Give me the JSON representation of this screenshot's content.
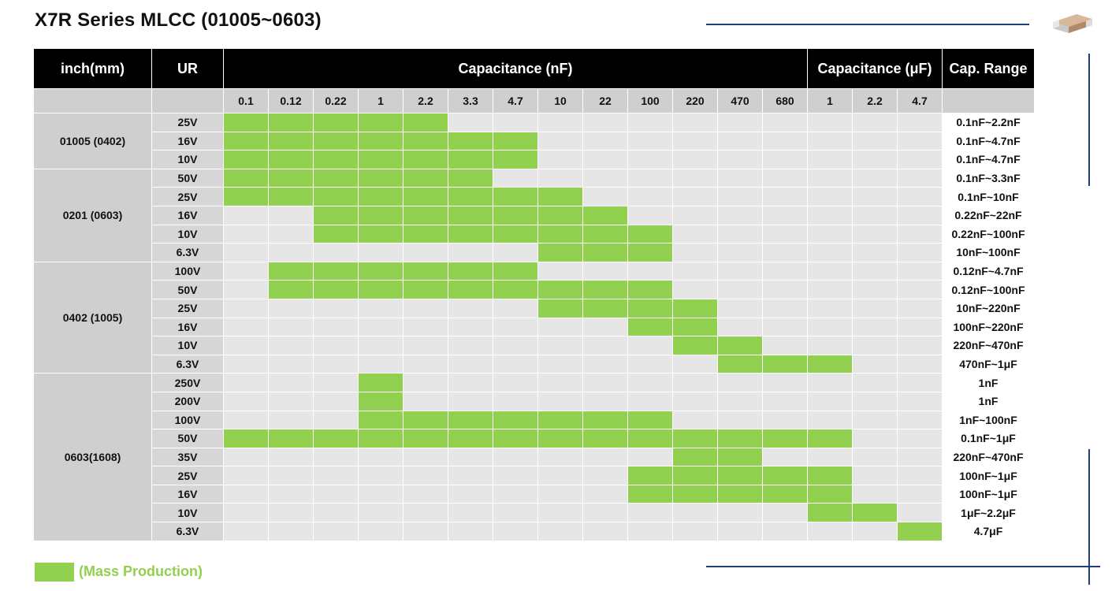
{
  "title": "X7R Series MLCC  (01005~0603)",
  "colors": {
    "mass_production": "#92d050",
    "header_bg": "#000000",
    "accent_line": "#1f3f7a"
  },
  "header": {
    "size_label": "inch(mm)",
    "ur_label": "UR",
    "cap_nf_label": "Capacitance (nF)",
    "cap_uf_label": "Capacitance (μF)",
    "range_label": "Cap. Range"
  },
  "cap_nf_values": [
    "0.1",
    "0.12",
    "0.22",
    "1",
    "2.2",
    "3.3",
    "4.7",
    "10",
    "22",
    "100",
    "220",
    "470",
    "680"
  ],
  "cap_uf_values": [
    "1",
    "2.2",
    "4.7"
  ],
  "groups": [
    {
      "size": "01005 (0402)",
      "rows": [
        {
          "ur": "25V",
          "range": "0.1nF~2.2nF",
          "on": [
            0,
            4
          ]
        },
        {
          "ur": "16V",
          "range": "0.1nF~4.7nF",
          "on": [
            0,
            6
          ]
        },
        {
          "ur": "10V",
          "range": "0.1nF~4.7nF",
          "on": [
            0,
            6
          ]
        }
      ]
    },
    {
      "size": "0201 (0603)",
      "rows": [
        {
          "ur": "50V",
          "range": "0.1nF~3.3nF",
          "on": [
            0,
            5
          ]
        },
        {
          "ur": "25V",
          "range": "0.1nF~10nF",
          "on": [
            0,
            7
          ]
        },
        {
          "ur": "16V",
          "range": "0.22nF~22nF",
          "on": [
            2,
            8
          ]
        },
        {
          "ur": "10V",
          "range": "0.22nF~100nF",
          "on": [
            2,
            9
          ]
        },
        {
          "ur": "6.3V",
          "range": "10nF~100nF",
          "on": [
            7,
            9
          ]
        }
      ]
    },
    {
      "size": "0402 (1005)",
      "rows": [
        {
          "ur": "100V",
          "range": "0.12nF~4.7nF",
          "on": [
            1,
            6
          ]
        },
        {
          "ur": "50V",
          "range": "0.12nF~100nF",
          "on": [
            1,
            9
          ]
        },
        {
          "ur": "25V",
          "range": "10nF~220nF",
          "on": [
            7,
            10
          ]
        },
        {
          "ur": "16V",
          "range": "100nF~220nF",
          "on": [
            9,
            10
          ]
        },
        {
          "ur": "10V",
          "range": "220nF~470nF",
          "on": [
            10,
            11
          ]
        },
        {
          "ur": "6.3V",
          "range": "470nF~1μF",
          "on": [
            11,
            13
          ]
        }
      ]
    },
    {
      "size": "0603(1608)",
      "rows": [
        {
          "ur": "250V",
          "range": "1nF",
          "on": [
            3,
            3
          ]
        },
        {
          "ur": "200V",
          "range": "1nF",
          "on": [
            3,
            3
          ]
        },
        {
          "ur": "100V",
          "range": "1nF~100nF",
          "on": [
            3,
            9
          ]
        },
        {
          "ur": "50V",
          "range": "0.1nF~1μF",
          "on": [
            0,
            13
          ]
        },
        {
          "ur": "35V",
          "range": "220nF~470nF",
          "on": [
            10,
            11
          ]
        },
        {
          "ur": "25V",
          "range": "100nF~1μF",
          "on": [
            9,
            13
          ]
        },
        {
          "ur": "16V",
          "range": "100nF~1μF",
          "on": [
            9,
            13
          ]
        },
        {
          "ur": "10V",
          "range": "1μF~2.2μF",
          "on": [
            13,
            14
          ]
        },
        {
          "ur": "6.3V",
          "range": "4.7μF",
          "on": [
            15,
            15
          ]
        }
      ]
    }
  ],
  "legend": {
    "label": "(Mass Production)"
  }
}
